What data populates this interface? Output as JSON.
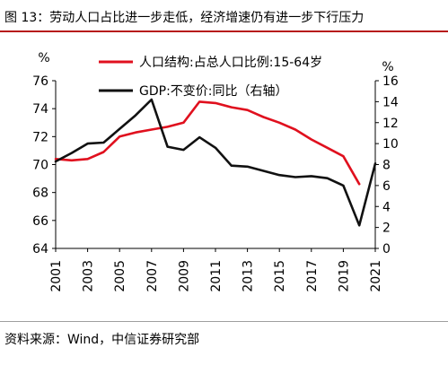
{
  "header": {
    "title": "图 13：劳动人口占比进一步走低，经济增速仍有进一步下行压力"
  },
  "footer": {
    "source": "资料来源：Wind，中信证券研究部"
  },
  "chart_data": {
    "type": "line",
    "title": "图 13：劳动人口占比进一步走低，经济增速仍有进一步下行压力",
    "x": [
      2001,
      2002,
      2003,
      2004,
      2005,
      2006,
      2007,
      2008,
      2009,
      2010,
      2011,
      2012,
      2013,
      2014,
      2015,
      2016,
      2017,
      2018,
      2019,
      2020,
      2021
    ],
    "x_tick_labels": [
      "2001",
      "2003",
      "2005",
      "2007",
      "2009",
      "2011",
      "2013",
      "2015",
      "2017",
      "2019",
      "2021"
    ],
    "left_axis": {
      "unit": "%",
      "ylim": [
        64,
        76
      ],
      "ticks": [
        64,
        66,
        68,
        70,
        72,
        74,
        76
      ]
    },
    "right_axis": {
      "unit": "%",
      "ylim": [
        0,
        16
      ],
      "ticks": [
        0,
        2,
        4,
        6,
        8,
        10,
        12,
        14,
        16
      ]
    },
    "grid": false,
    "legend_position": "top",
    "series": [
      {
        "name": "人口结构:占总人口比例:15-64岁",
        "axis": "left",
        "color": "#e0101e",
        "x": [
          2001,
          2002,
          2003,
          2004,
          2005,
          2006,
          2007,
          2008,
          2009,
          2010,
          2011,
          2012,
          2013,
          2014,
          2015,
          2016,
          2017,
          2018,
          2019,
          2020
        ],
        "values": [
          70.4,
          70.3,
          70.4,
          70.9,
          72.0,
          72.3,
          72.5,
          72.7,
          73.0,
          74.5,
          74.4,
          74.1,
          73.9,
          73.4,
          73.0,
          72.5,
          71.8,
          71.2,
          70.6,
          68.6
        ]
      },
      {
        "name": "GDP:不变价:同比（右轴）",
        "axis": "right",
        "color": "#111111",
        "x": [
          2001,
          2002,
          2003,
          2004,
          2005,
          2006,
          2007,
          2008,
          2009,
          2010,
          2011,
          2012,
          2013,
          2014,
          2015,
          2016,
          2017,
          2018,
          2019,
          2020,
          2021
        ],
        "values": [
          8.3,
          9.1,
          10.0,
          10.1,
          11.4,
          12.7,
          14.2,
          9.7,
          9.4,
          10.6,
          9.6,
          7.9,
          7.8,
          7.4,
          7.0,
          6.8,
          6.9,
          6.7,
          6.0,
          2.2,
          8.1
        ]
      }
    ]
  }
}
